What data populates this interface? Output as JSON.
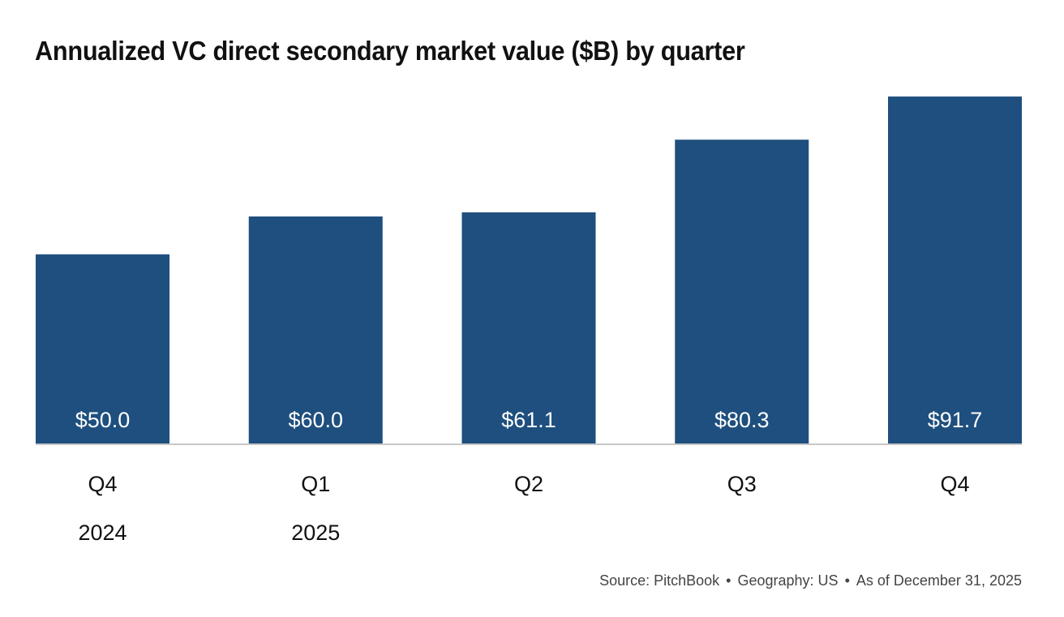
{
  "chart_data": {
    "type": "bar",
    "title": "Annualized VC direct secondary market value ($B) by quarter",
    "categories": [
      "Q4 2024",
      "Q1 2025",
      "Q2 2025",
      "Q3 2025",
      "Q4 2025"
    ],
    "tick_labels": [
      {
        "quarter": "Q4",
        "year": "2024"
      },
      {
        "quarter": "Q1",
        "year": "2025"
      },
      {
        "quarter": "Q2",
        "year": ""
      },
      {
        "quarter": "Q3",
        "year": ""
      },
      {
        "quarter": "Q4",
        "year": ""
      }
    ],
    "values": [
      50.0,
      60.0,
      61.1,
      80.3,
      91.7
    ],
    "data_labels": [
      "$50.0",
      "$60.0",
      "$61.1",
      "$80.3",
      "$91.7"
    ],
    "xlabel": "",
    "ylabel": "",
    "ylim": [
      0,
      93
    ],
    "grid": false,
    "legend": "none",
    "bar_color": "#1e4f7e"
  },
  "footer": {
    "source": "Source: PitchBook",
    "geography": "Geography: US",
    "as_of": "As of December 31, 2025",
    "separator": "•"
  }
}
